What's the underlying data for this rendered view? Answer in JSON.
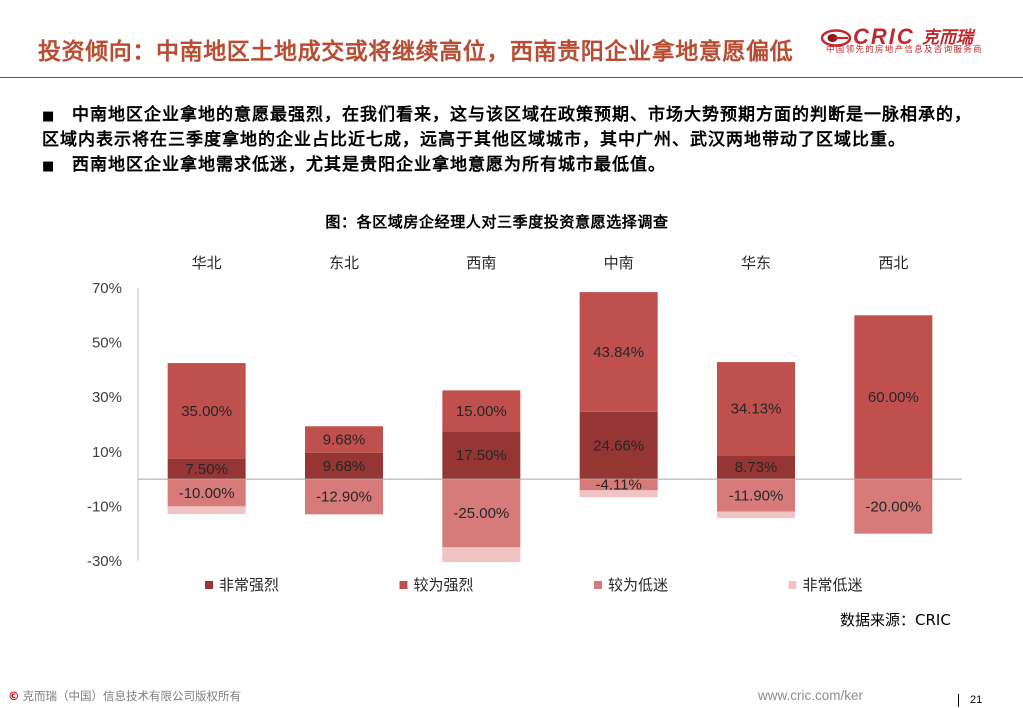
{
  "header": {
    "title": "投资倾向：中南地区土地成交或将继续高位，西南贵阳企业拿地意愿偏低",
    "title_color": "#b84d33"
  },
  "logo": {
    "icon": "eye-logo-icon",
    "brand": "CRIC",
    "brand_cn": "克而瑞",
    "tagline": "中国领先的房地产信息及咨询服务商",
    "color": "#c1272d"
  },
  "bullets": [
    {
      "marker": "■",
      "lines": [
        "中南地区企业拿地的意愿最强烈，在我们看来，这与该区域在政策预期、市场大势预期方面的判断是一脉相承的，",
        "区域内表示将在三季度拿地的企业占比近七成，远高于其他区域城市，其中广州、武汉两地带动了区域比重。"
      ]
    },
    {
      "marker": "■",
      "lines": [
        "西南地区企业拿地需求低迷，尤其是贵阳企业拿地意愿为所有城市最低值。"
      ]
    }
  ],
  "chart_data": {
    "type": "bar",
    "stacked": true,
    "title": "图：各区域房企经理人对三季度投资意愿选择调查",
    "categories": [
      "华北",
      "东北",
      "西南",
      "中南",
      "华东",
      "西北"
    ],
    "series": [
      {
        "name": "非常强烈",
        "color": "#963634",
        "values": [
          7.5,
          9.68,
          17.5,
          24.66,
          8.73,
          0
        ],
        "labels": [
          "7.50%",
          "9.68%",
          "17.50%",
          "24.66%",
          "8.73%",
          ""
        ]
      },
      {
        "name": "较为强烈",
        "color": "#c0504d",
        "values": [
          35.0,
          9.68,
          15.0,
          43.84,
          34.13,
          60.0
        ],
        "labels": [
          "35.00%",
          "9.68%",
          "15.00%",
          "43.84%",
          "34.13%",
          "60.00%"
        ]
      },
      {
        "name": "较为低迷",
        "color": "#d67b7a",
        "values": [
          -10.0,
          -12.9,
          -25.0,
          -4.11,
          -11.9,
          -20.0
        ],
        "labels": [
          "-10.00%",
          "-12.90%",
          "-25.00%",
          "-4.11%",
          "-11.90%",
          "-20.00%"
        ]
      },
      {
        "name": "非常低迷",
        "color": "#f1c4c4",
        "values": [
          -2.8,
          0,
          -5.4,
          -2.5,
          -2.4,
          0
        ],
        "labels": [
          "",
          "",
          "",
          "",
          "",
          ""
        ]
      }
    ],
    "ylim": [
      -30,
      70
    ],
    "yticks": [
      70,
      50,
      30,
      10,
      -10,
      -30
    ],
    "ytick_labels": [
      "70%",
      "50%",
      "30%",
      "10%",
      "-10%",
      "-30%"
    ],
    "grid": false,
    "legend": "bottom",
    "source": "数据来源：CRIC"
  },
  "footer": {
    "copyright_symbol": "©",
    "copyright": "克而瑞（中国）信息技术有限公司版权所有",
    "url": "www.cric.com/ker",
    "page_number": "21"
  }
}
